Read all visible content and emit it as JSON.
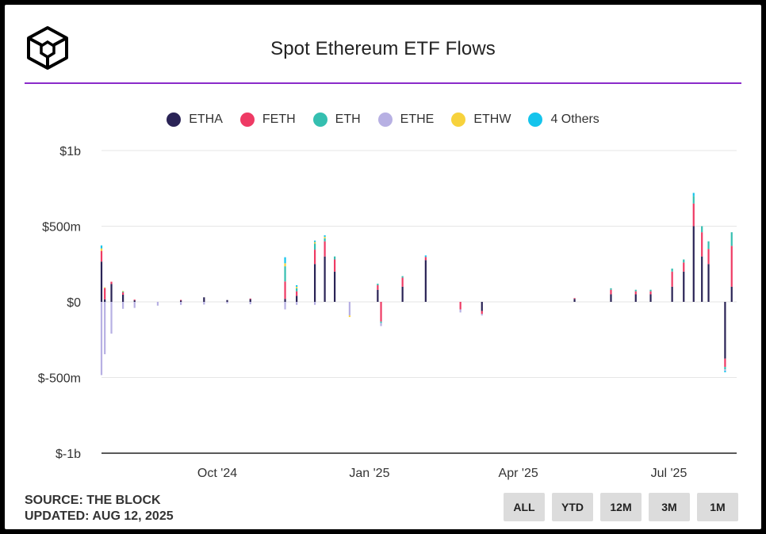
{
  "header": {
    "title": "Spot Ethereum ETF Flows"
  },
  "legend": {
    "items": [
      {
        "label": "ETHA",
        "color": "#2a2356"
      },
      {
        "label": "FETH",
        "color": "#ee3a64"
      },
      {
        "label": "ETH",
        "color": "#35bfb0"
      },
      {
        "label": "ETHE",
        "color": "#b7b0e3"
      },
      {
        "label": "ETHW",
        "color": "#f7d23c"
      },
      {
        "label": "4 Others",
        "color": "#14c4ec"
      }
    ]
  },
  "footer": {
    "source": "SOURCE: THE BLOCK",
    "updated": "UPDATED: AUG 12, 2025"
  },
  "range_buttons": [
    "ALL",
    "YTD",
    "12M",
    "3M",
    "1M"
  ],
  "chart_data": {
    "type": "bar",
    "stacked": true,
    "title": "Spot Ethereum ETF Flows",
    "y_ticks": [
      "$1b",
      "$500m",
      "$0",
      "$-500m",
      "$-1b"
    ],
    "y_tick_values": [
      1000,
      500,
      0,
      -500,
      -1000
    ],
    "ylim": [
      -1000,
      1000
    ],
    "x_ticks": [
      "Oct '24",
      "Jan '25",
      "Apr '25",
      "Jul '25"
    ],
    "x_tick_dates": [
      "2024-10-01",
      "2025-01-01",
      "2025-04-01",
      "2025-07-01"
    ],
    "x_range": [
      "2024-07-23",
      "2025-08-11"
    ],
    "unit": "USD millions",
    "grid": true,
    "legend_position": "top-center",
    "series_order": [
      "ETHA",
      "FETH",
      "ETH",
      "ETHE",
      "ETHW",
      "4 Others"
    ],
    "flows": [
      {
        "date": "2024-07-23",
        "ETHA": 266,
        "FETH": 71,
        "ETH": 0,
        "ETHE": -484,
        "ETHW": 16,
        "4 Others": 20
      },
      {
        "date": "2024-07-25",
        "ETHA": 17,
        "FETH": 74,
        "ETH": 0,
        "ETHE": -346,
        "ETHW": 5,
        "4 Others": 0
      },
      {
        "date": "2024-07-29",
        "ETHA": 118,
        "FETH": 15,
        "ETH": 0,
        "ETHE": -210,
        "ETHW": 0,
        "4 Others": 0
      },
      {
        "date": "2024-08-05",
        "ETHA": 47,
        "FETH": 16,
        "ETH": 6,
        "ETHE": -46,
        "ETHW": 3,
        "4 Others": 0
      },
      {
        "date": "2024-08-12",
        "ETHA": 10,
        "FETH": 5,
        "ETH": 0,
        "ETHE": -40,
        "ETHW": 0,
        "4 Others": 0
      },
      {
        "date": "2024-08-26",
        "ETHA": 0,
        "FETH": 0,
        "ETH": 0,
        "ETHE": -25,
        "ETHW": 0,
        "4 Others": 0
      },
      {
        "date": "2024-09-09",
        "ETHA": 10,
        "FETH": 3,
        "ETH": 0,
        "ETHE": -20,
        "ETHW": 0,
        "4 Others": 0
      },
      {
        "date": "2024-09-23",
        "ETHA": 30,
        "FETH": 0,
        "ETH": 0,
        "ETHE": -18,
        "ETHW": 0,
        "4 Others": 0
      },
      {
        "date": "2024-10-07",
        "ETHA": 12,
        "FETH": 0,
        "ETH": 0,
        "ETHE": -10,
        "ETHW": 0,
        "4 Others": 0
      },
      {
        "date": "2024-10-21",
        "ETHA": 18,
        "FETH": 4,
        "ETH": 0,
        "ETHE": -16,
        "ETHW": 0,
        "4 Others": 0
      },
      {
        "date": "2024-11-11",
        "ETHA": 20,
        "FETH": 115,
        "ETH": 100,
        "ETHE": -50,
        "ETHW": 20,
        "4 Others": 40
      },
      {
        "date": "2024-11-18",
        "ETHA": 40,
        "FETH": 30,
        "ETH": 20,
        "ETHE": -20,
        "ETHW": 10,
        "4 Others": 10
      },
      {
        "date": "2024-11-29",
        "ETHA": 250,
        "FETH": 95,
        "ETH": 40,
        "ETHE": -20,
        "ETHW": 10,
        "4 Others": 10
      },
      {
        "date": "2024-12-05",
        "ETHA": 300,
        "FETH": 100,
        "ETH": 20,
        "ETHE": 0,
        "ETHW": 10,
        "4 Others": 10
      },
      {
        "date": "2024-12-11",
        "ETHA": 200,
        "FETH": 80,
        "ETH": 20,
        "ETHE": 0,
        "ETHW": 0,
        "4 Others": 0
      },
      {
        "date": "2024-12-20",
        "ETHA": 0,
        "FETH": 0,
        "ETH": 0,
        "ETHE": -90,
        "ETHW": -10,
        "4 Others": 0
      },
      {
        "date": "2025-01-06",
        "ETHA": 80,
        "FETH": 30,
        "ETH": 10,
        "ETHE": 0,
        "ETHW": 0,
        "4 Others": 0
      },
      {
        "date": "2025-01-08",
        "ETHA": 0,
        "FETH": -130,
        "ETH": -10,
        "ETHE": -20,
        "ETHW": 0,
        "4 Others": 0
      },
      {
        "date": "2025-01-21",
        "ETHA": 100,
        "FETH": 60,
        "ETH": 10,
        "ETHE": 0,
        "ETHW": 0,
        "4 Others": 0
      },
      {
        "date": "2025-02-04",
        "ETHA": 276,
        "FETH": 21,
        "ETH": 0,
        "ETHE": 0,
        "ETHW": 0,
        "4 Others": 10
      },
      {
        "date": "2025-02-25",
        "ETHA": 0,
        "FETH": -50,
        "ETH": 0,
        "ETHE": -20,
        "ETHW": 0,
        "4 Others": 0
      },
      {
        "date": "2025-03-10",
        "ETHA": -60,
        "FETH": -20,
        "ETH": 0,
        "ETHE": -10,
        "ETHW": 0,
        "4 Others": 0
      },
      {
        "date": "2025-05-05",
        "ETHA": 20,
        "FETH": 5,
        "ETH": 0,
        "ETHE": 0,
        "ETHW": 0,
        "4 Others": 0
      },
      {
        "date": "2025-05-27",
        "ETHA": 50,
        "FETH": 30,
        "ETH": 10,
        "ETHE": 0,
        "ETHW": 0,
        "4 Others": 0
      },
      {
        "date": "2025-06-11",
        "ETHA": 50,
        "FETH": 20,
        "ETH": 10,
        "ETHE": 0,
        "ETHW": 0,
        "4 Others": 0
      },
      {
        "date": "2025-06-20",
        "ETHA": 50,
        "FETH": 20,
        "ETH": 10,
        "ETHE": 0,
        "ETHW": 0,
        "4 Others": 0
      },
      {
        "date": "2025-07-03",
        "ETHA": 100,
        "FETH": 100,
        "ETH": 20,
        "ETHE": 0,
        "ETHW": 0,
        "4 Others": 0
      },
      {
        "date": "2025-07-10",
        "ETHA": 200,
        "FETH": 60,
        "ETH": 20,
        "ETHE": 0,
        "ETHW": 0,
        "4 Others": 0
      },
      {
        "date": "2025-07-16",
        "ETHA": 500,
        "FETH": 150,
        "ETH": 50,
        "ETHE": 0,
        "ETHW": 0,
        "4 Others": 20
      },
      {
        "date": "2025-07-21",
        "ETHA": 300,
        "FETH": 160,
        "ETH": 40,
        "ETHE": 0,
        "ETHW": 0,
        "4 Others": 0
      },
      {
        "date": "2025-07-25",
        "ETHA": 250,
        "FETH": 100,
        "ETH": 50,
        "ETHE": 0,
        "ETHW": 0,
        "4 Others": 0
      },
      {
        "date": "2025-08-04",
        "ETHA": -375,
        "FETH": -55,
        "ETH": -15,
        "ETHE": -10,
        "ETHW": 0,
        "4 Others": -10
      },
      {
        "date": "2025-08-08",
        "ETHA": 100,
        "FETH": 270,
        "ETH": 90,
        "ETHE": 0,
        "ETHW": 0,
        "4 Others": 0
      }
    ]
  }
}
